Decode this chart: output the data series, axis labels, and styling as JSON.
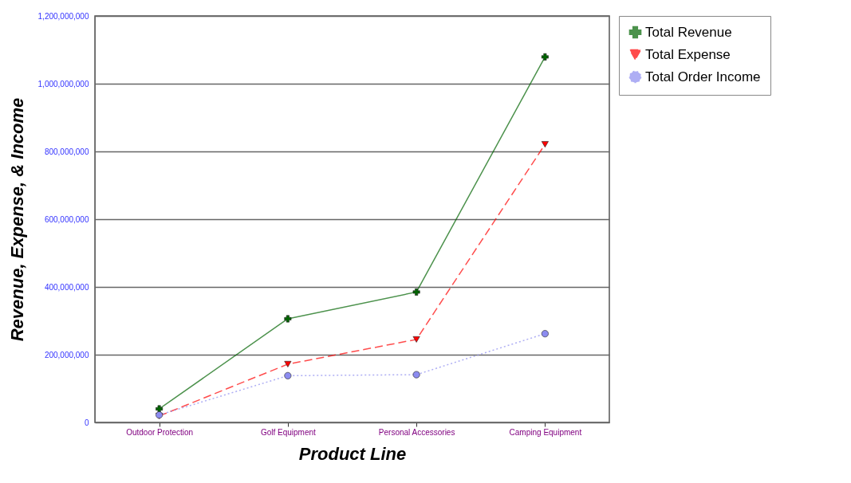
{
  "chart_data": {
    "type": "line",
    "xlabel": "Product Line",
    "ylabel": "Revenue, Expense, & Income",
    "categories": [
      "Outdoor Protection",
      "Golf Equipment",
      "Personal Accessories",
      "Camping Equipment"
    ],
    "series": [
      {
        "name": "Total Revenue",
        "color": "#006400",
        "marker": "cross",
        "line_style": "solid",
        "values": [
          40000000,
          306000000,
          385000000,
          1079000000
        ]
      },
      {
        "name": "Total Expense",
        "color": "#ff0000",
        "marker": "triangle",
        "line_style": "dashed",
        "values": [
          19000000,
          172000000,
          245000000,
          821000000
        ]
      },
      {
        "name": "Total Order Income",
        "color": "#8c8cf0",
        "marker": "circle",
        "line_style": "dotted",
        "values": [
          22000000,
          138000000,
          141000000,
          262000000
        ]
      }
    ],
    "ylim": [
      0,
      1200000000
    ],
    "yticks": [
      0,
      {
        "value": 200000000,
        "label": "200,000,000"
      },
      {
        "value": 400000000,
        "label": "400,000,000"
      },
      {
        "value": 600000000,
        "label": "600,000,000"
      },
      {
        "value": 800000000,
        "label": "800,000,000"
      },
      {
        "value": 1000000000,
        "label": "1,000,000,000"
      },
      {
        "value": 1200000000,
        "label": "1,200,000,000"
      }
    ],
    "grid": "y",
    "legend": "right"
  }
}
